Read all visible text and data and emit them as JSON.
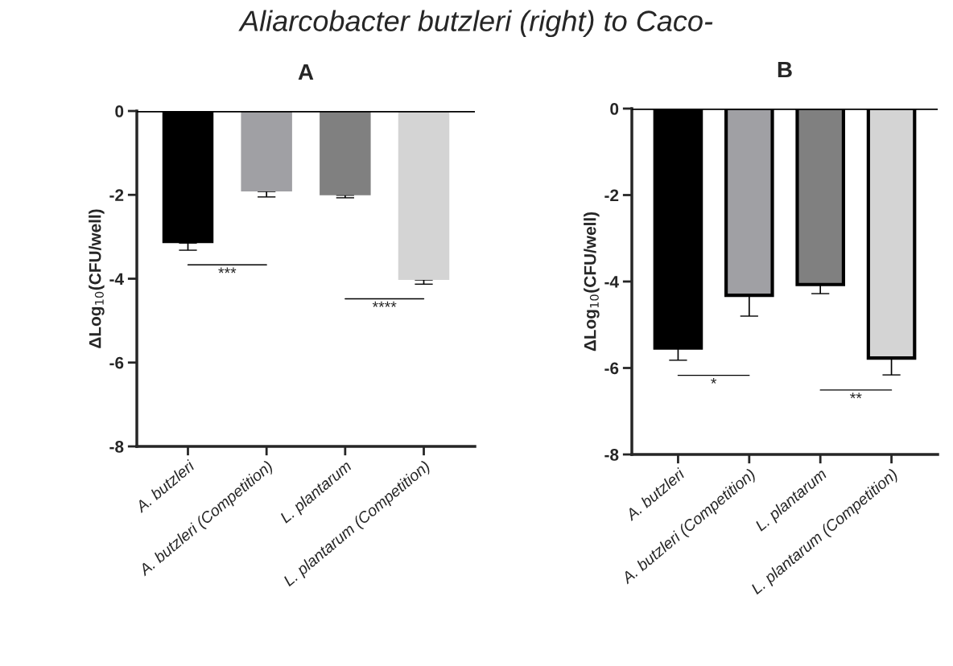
{
  "chart_data": [
    {
      "type": "bar",
      "title": "A",
      "ylabel": "ΔLog$_{10}$(CFU/well)",
      "categories": [
        "A. butzleri",
        "A. butzleri (Competition)",
        "L. plantarum",
        "L. plantarum (Competition)"
      ],
      "values": [
        -3.15,
        -1.92,
        -2.01,
        -4.03
      ],
      "colors": [
        "#000000",
        "#a0a0a4",
        "#808080",
        "#d4d4d4"
      ],
      "errors": [
        [
          -3.32,
          -3.15
        ],
        [
          -2.05,
          -1.92
        ],
        [
          -2.07,
          -2.01
        ],
        [
          -4.13,
          -4.03
        ]
      ],
      "ylim": [
        -8,
        0
      ],
      "yticks": [
        -8,
        -6,
        -4,
        -2,
        0
      ],
      "grid": false,
      "ref_lines": [
        {
          "axis": "y",
          "value": 0,
          "color": "#000000"
        }
      ],
      "annotations": [
        "Aliarcobacter butzleri (right) to Caco-",
        "***",
        "****"
      ]
    },
    {
      "type": "bar",
      "title": "B",
      "ylabel": "ΔLog$_{10}$(CFU/well)",
      "categories": [
        "A. butzleri",
        "A. butzleri (Competition)",
        "L. plantarum",
        "L. plantarum (Competition)"
      ],
      "values": [
        -5.54,
        -4.32,
        -4.07,
        -5.77
      ],
      "colors": [
        "#000000",
        "#a0a0a4",
        "#808080",
        "#d4d4d4"
      ],
      "errors": [
        [
          -5.82,
          -5.54
        ],
        [
          -4.8,
          -4.32
        ],
        [
          -4.28,
          -4.07
        ],
        [
          -6.16,
          -5.77
        ]
      ],
      "ylim": [
        -8,
        0
      ],
      "yticks": [
        -8,
        -6,
        -4,
        -2,
        0
      ],
      "grid": false,
      "ref_lines": [
        {
          "axis": "y",
          "value": 0,
          "color": "#000000"
        }
      ],
      "annotations": [
        "*",
        "**"
      ]
    }
  ]
}
